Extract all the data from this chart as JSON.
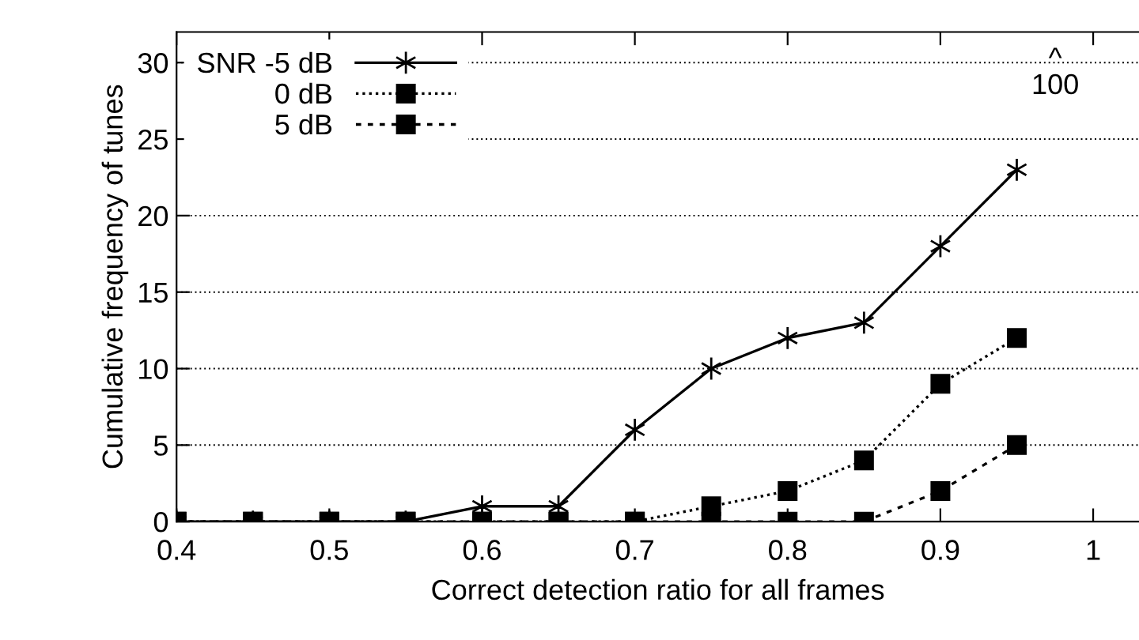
{
  "chart_data": {
    "type": "line",
    "xlabel": "Correct detection ratio for all frames",
    "ylabel": "Cumulative frequency of tunes",
    "x": [
      0.4,
      0.45,
      0.5,
      0.55,
      0.6,
      0.65,
      0.7,
      0.75,
      0.8,
      0.85,
      0.9,
      0.95
    ],
    "series": [
      {
        "name": "SNR -5 dB",
        "color": "#000000",
        "marker": "cross",
        "line_style": "solid",
        "values": [
          0,
          0,
          0,
          0,
          1,
          1,
          6,
          10,
          12,
          13,
          18,
          23
        ]
      },
      {
        "name": "0 dB",
        "color": "#000000",
        "marker": "square",
        "line_style": "dotted",
        "values": [
          0,
          0,
          0,
          0,
          0,
          0,
          0,
          1,
          2,
          4,
          9,
          12
        ]
      },
      {
        "name": "5 dB",
        "color": "#000000",
        "marker": "square",
        "line_style": "dashed",
        "values": [
          0,
          0,
          0,
          0,
          0,
          0,
          0,
          0,
          0,
          0,
          2,
          5
        ]
      }
    ],
    "annotations": [
      "^\n100"
    ],
    "xlim": [
      0.4,
      1.03
    ],
    "ylim": [
      0,
      32
    ],
    "xticks": [
      0.4,
      0.5,
      0.6,
      0.7,
      0.8,
      0.9,
      1
    ],
    "yticks": [
      0,
      5,
      10,
      15,
      20,
      25,
      30
    ],
    "grid": "y",
    "legend": "top left"
  }
}
